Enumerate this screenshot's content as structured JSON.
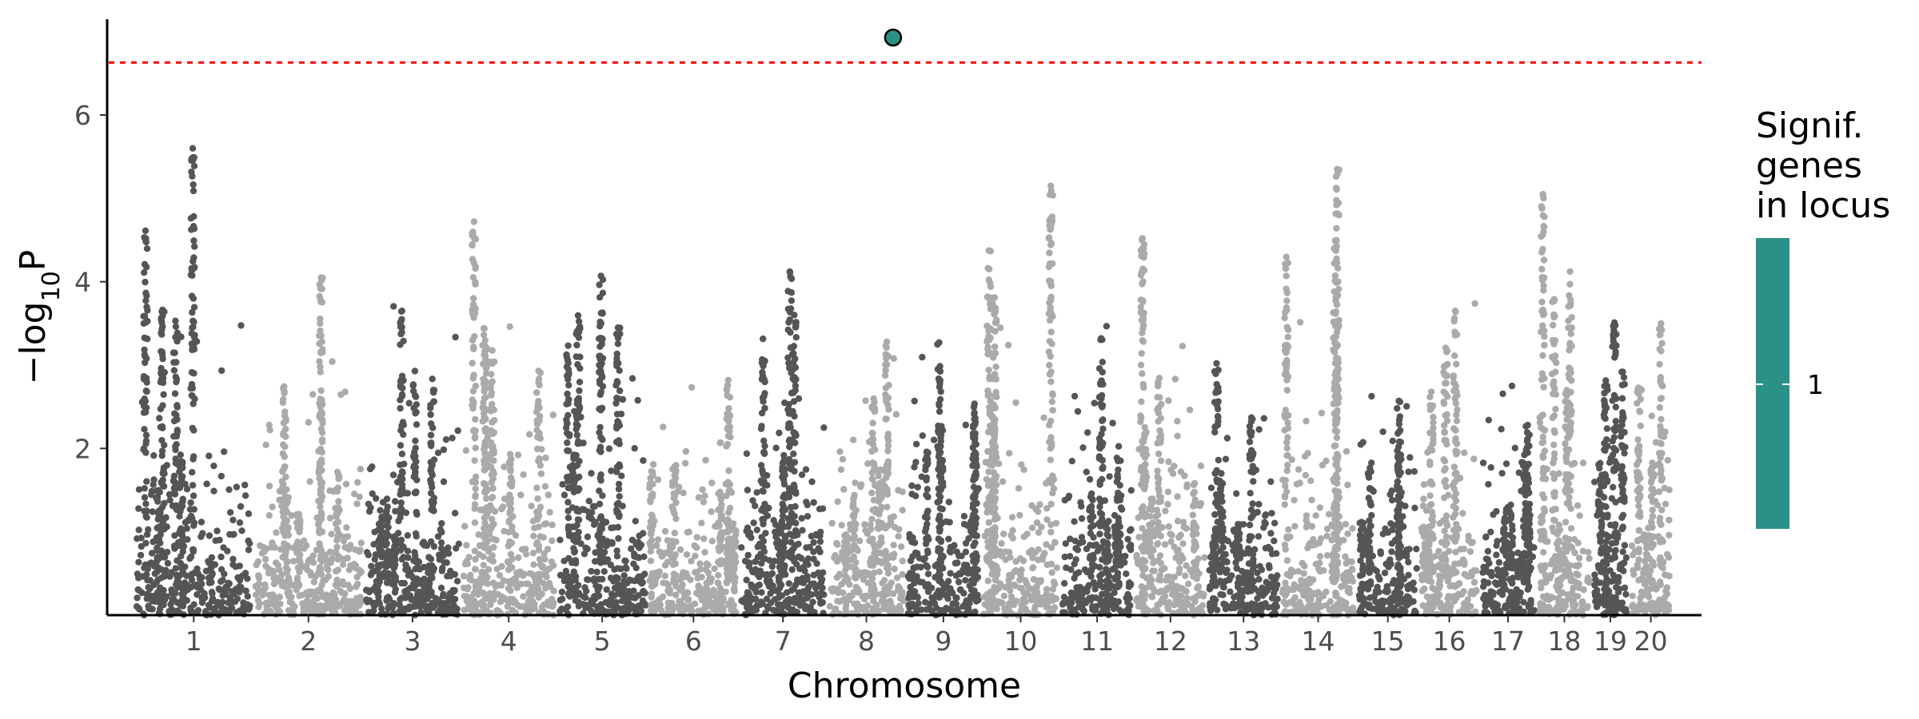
{
  "chart_data": {
    "type": "scatter",
    "chart_subtype": "manhattan",
    "title": "",
    "xlabel": "Chromosome",
    "ylabel_prefix": "−log",
    "ylabel_subscript": "10",
    "ylabel_suffix": "P",
    "y_ticks": [
      2,
      4,
      6
    ],
    "ylim": [
      0,
      7.15
    ],
    "grid": false,
    "chromosomes": [
      {
        "label": "1",
        "size": 195,
        "peak": 5.6,
        "color": "#555555"
      },
      {
        "label": "2",
        "size": 182,
        "peak": 4.05,
        "color": "#aaaaaa"
      },
      {
        "label": "3",
        "size": 160,
        "peak": 3.65,
        "color": "#555555"
      },
      {
        "label": "4",
        "size": 156,
        "peak": 4.72,
        "color": "#aaaaaa"
      },
      {
        "label": "5",
        "size": 151,
        "peak": 4.07,
        "color": "#555555"
      },
      {
        "label": "6",
        "size": 149,
        "peak": 2.82,
        "color": "#aaaaaa"
      },
      {
        "label": "7",
        "size": 145,
        "peak": 4.12,
        "color": "#555555"
      },
      {
        "label": "8",
        "size": 129,
        "peak": 3.28,
        "color": "#aaaaaa"
      },
      {
        "label": "9",
        "size": 124,
        "peak": 3.27,
        "color": "#555555"
      },
      {
        "label": "10",
        "size": 130,
        "peak": 5.15,
        "color": "#aaaaaa"
      },
      {
        "label": "11",
        "size": 121,
        "peak": 3.32,
        "color": "#555555"
      },
      {
        "label": "12",
        "size": 120,
        "peak": 4.52,
        "color": "#aaaaaa"
      },
      {
        "label": "13",
        "size": 120,
        "peak": 3.02,
        "color": "#555555"
      },
      {
        "label": "14",
        "size": 125,
        "peak": 5.35,
        "color": "#aaaaaa"
      },
      {
        "label": "15",
        "size": 104,
        "peak": 2.57,
        "color": "#555555"
      },
      {
        "label": "16",
        "size": 98,
        "peak": 3.65,
        "color": "#aaaaaa"
      },
      {
        "label": "17",
        "size": 95,
        "peak": 2.28,
        "color": "#555555"
      },
      {
        "label": "18",
        "size": 90,
        "peak": 5.05,
        "color": "#aaaaaa"
      },
      {
        "label": "19",
        "size": 61,
        "peak": 3.51,
        "color": "#555555"
      },
      {
        "label": "20",
        "size": 72,
        "peak": 3.5,
        "color": "#aaaaaa"
      }
    ],
    "significance_threshold": 6.63,
    "threshold_color": "#ff0000",
    "highlight_points": [
      {
        "chromosome": "8",
        "position_fraction": 0.84,
        "y": 6.93,
        "signif_genes": 1,
        "color": "#2a9088"
      }
    ],
    "legend": {
      "title_lines": [
        "Signif.",
        "genes",
        "in locus"
      ],
      "label": "1",
      "color": "#2a9088",
      "placement": "right"
    }
  }
}
